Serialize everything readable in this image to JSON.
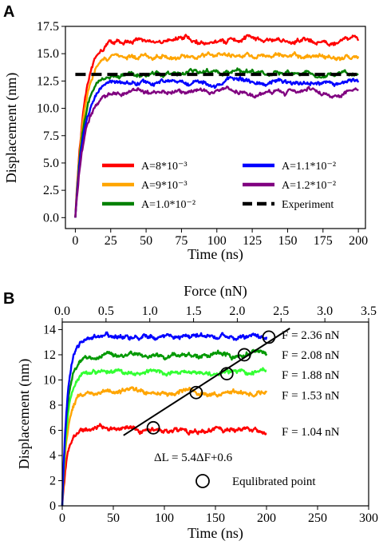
{
  "chart_data": [
    {
      "panel": "A",
      "type": "line",
      "xlabel": "Time (ns)",
      "ylabel": "Displacement (nm)",
      "xlim": [
        -7,
        205
      ],
      "ylim": [
        -1,
        17.5
      ],
      "xticks": [
        0,
        25,
        50,
        75,
        100,
        125,
        150,
        175,
        200
      ],
      "yticks": [
        0.0,
        2.5,
        5.0,
        7.5,
        10.0,
        12.5,
        15.0,
        17.5
      ],
      "ytick_labels": [
        "0.0",
        "2.5",
        "5.0",
        "7.5",
        "10.0",
        "12.5",
        "15.0",
        "17.5"
      ],
      "legend_position": "lower-right",
      "series": [
        {
          "name": "A=8*10⁻³",
          "color": "#ff0000",
          "plateau": 16.2,
          "tau": 6.0
        },
        {
          "name": "A=9*10⁻³",
          "color": "#ffa500",
          "plateau": 14.7,
          "tau": 6.0
        },
        {
          "name": "A=1.0*10⁻²",
          "color": "#008000",
          "plateau": 13.3,
          "tau": 6.0
        },
        {
          "name": "A=1.1*10⁻²",
          "color": "#0000ff",
          "plateau": 12.4,
          "tau": 6.0
        },
        {
          "name": "A=1.2*10⁻²",
          "color": "#800080",
          "plateau": 11.4,
          "tau": 6.0
        },
        {
          "name": "Experiment",
          "color": "#000000",
          "constant": 13.1,
          "x_range": [
            0,
            200
          ],
          "dashed": true
        }
      ]
    },
    {
      "panel": "B",
      "type": "line",
      "xlabel": "Time (ns)",
      "ylabel": "Displacement (nm)",
      "x2label": "Force (nN)",
      "xlim": [
        0,
        300
      ],
      "ylim": [
        0,
        14.6
      ],
      "x2lim": [
        0,
        3.5
      ],
      "xticks": [
        0,
        50,
        100,
        150,
        200,
        250,
        300
      ],
      "yticks": [
        0,
        2,
        4,
        6,
        8,
        10,
        12,
        14
      ],
      "x2ticks": [
        0.0,
        0.5,
        1.0,
        1.5,
        2.0,
        2.5,
        3.0,
        3.5
      ],
      "x2tick_labels": [
        "0.0",
        "0.5",
        "1.0",
        "1.5",
        "2.0",
        "2.5",
        "3.0",
        "3.5"
      ],
      "series": [
        {
          "name": "F = 1.04 nN",
          "color": "#ff0000",
          "plateau": 6.0,
          "tau": 5.0
        },
        {
          "name": "F = 1.53 nN",
          "color": "#ffa500",
          "plateau": 9.0,
          "tau": 5.0
        },
        {
          "name": "F = 1.88 nN",
          "color": "#33ff33",
          "plateau": 10.6,
          "tau": 5.0
        },
        {
          "name": "F = 2.08 nN",
          "color": "#009900",
          "plateau": 12.0,
          "tau": 5.0
        },
        {
          "name": "F = 2.36 nN",
          "color": "#0000ff",
          "plateau": 13.4,
          "tau": 5.0
        }
      ],
      "equilibrated_points": [
        {
          "force": 1.04,
          "displacement": 6.2
        },
        {
          "force": 1.53,
          "displacement": 9.0
        },
        {
          "force": 1.88,
          "displacement": 10.5
        },
        {
          "force": 2.08,
          "displacement": 12.0
        },
        {
          "force": 2.36,
          "displacement": 13.4
        }
      ],
      "fit_line": {
        "label": "ΔL = 5.4ΔF+0.6",
        "force_range": [
          0.7,
          2.6
        ],
        "y_range": [
          5.6,
          14.1
        ]
      },
      "marker_legend": "Equlibrated point"
    }
  ]
}
